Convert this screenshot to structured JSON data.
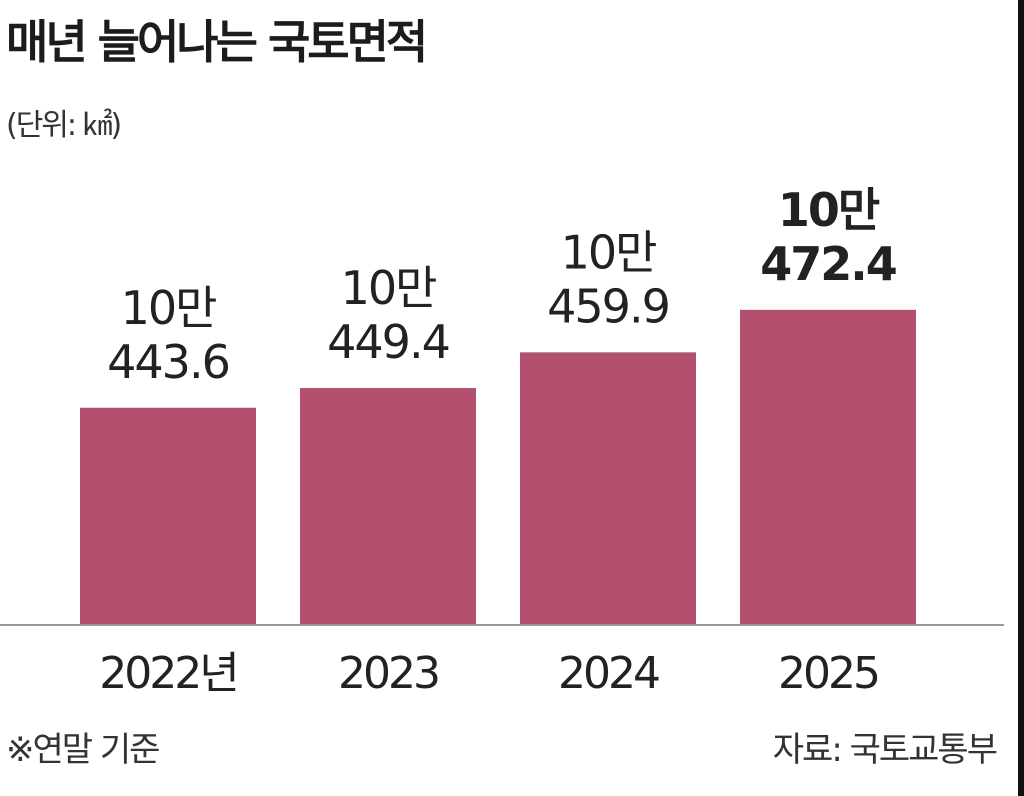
{
  "chart_data": {
    "type": "bar",
    "title": "매년 늘어나는 국토면적",
    "unit": "(단위: ㎢)",
    "categories": [
      "2022년",
      "2023",
      "2024",
      "2025"
    ],
    "values": [
      100443.6,
      100449.4,
      100459.9,
      100472.4
    ],
    "value_labels": [
      {
        "top": "10만",
        "bottom": "443.6"
      },
      {
        "top": "10만",
        "bottom": "449.4"
      },
      {
        "top": "10만",
        "bottom": "459.9"
      },
      {
        "top": "10만",
        "bottom": "472.4"
      }
    ],
    "ylim": [
      100380,
      100480
    ],
    "grid": false,
    "bar_color": "#b4506e",
    "highlight_last_label": true,
    "footnote": "※연말 기준",
    "source": "자료: 국토교통부"
  }
}
